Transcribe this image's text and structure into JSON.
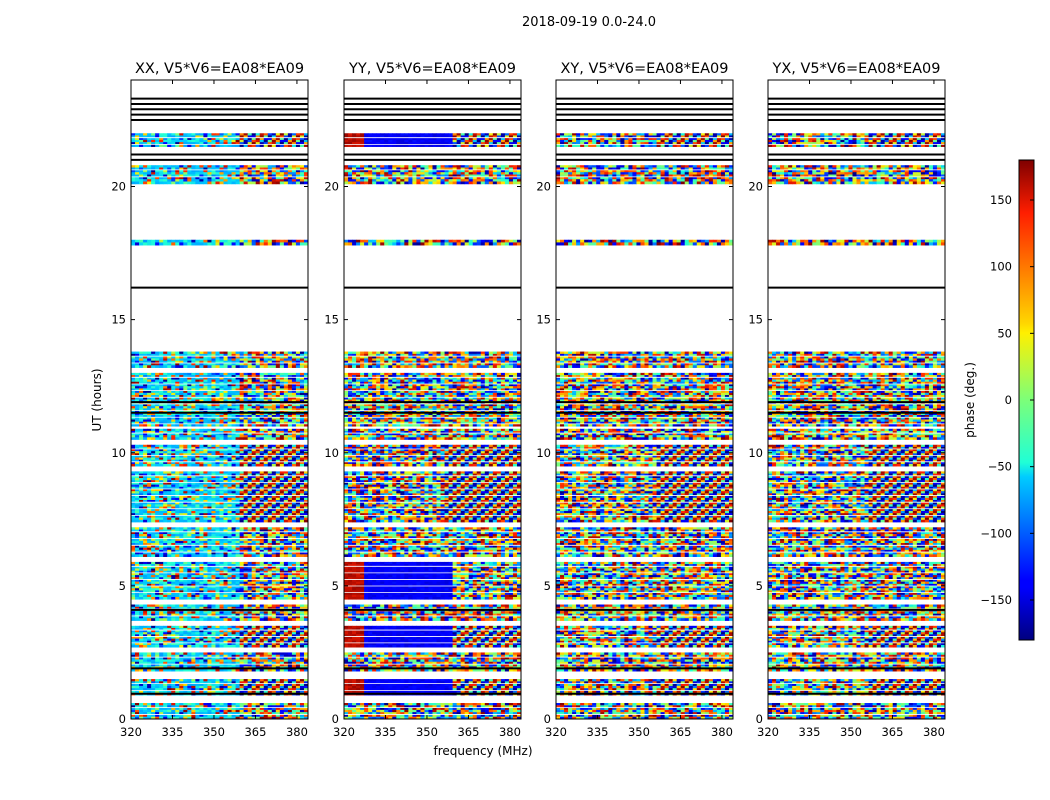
{
  "figure_title": "2018-09-19 0.0-24.0",
  "chart_data": {
    "type": "heatmap",
    "title": "2018-09-19 0.0-24.0",
    "xlabel": "frequency (MHz)",
    "ylabel": "UT (hours)",
    "xlim": [
      320,
      384
    ],
    "ylim": [
      0,
      24
    ],
    "x_ticks": [
      320,
      335,
      350,
      365,
      380
    ],
    "y_ticks": [
      0,
      5,
      10,
      15,
      20
    ],
    "panels": [
      {
        "title": "XX, V5*V6=EA08*EA09",
        "palette": "cyan"
      },
      {
        "title": "YY, V5*V6=EA08*EA09",
        "palette": "redblue"
      },
      {
        "title": "XY, V5*V6=EA08*EA09",
        "palette": "noise"
      },
      {
        "title": "YX, V5*V6=EA08*EA09",
        "palette": "noise"
      }
    ],
    "data_blocks": [
      {
        "t0": 0.0,
        "t1": 0.6,
        "kind": "noise"
      },
      {
        "t0": 0.9,
        "t1": 1.5,
        "kind": "fringe"
      },
      {
        "t0": 1.8,
        "t1": 2.5,
        "kind": "noise"
      },
      {
        "t0": 2.7,
        "t1": 3.5,
        "kind": "fringe"
      },
      {
        "t0": 3.7,
        "t1": 4.3,
        "kind": "noise"
      },
      {
        "t0": 4.5,
        "t1": 5.9,
        "kind": "noise"
      },
      {
        "t0": 6.1,
        "t1": 7.2,
        "kind": "noise"
      },
      {
        "t0": 7.4,
        "t1": 9.3,
        "kind": "fringe"
      },
      {
        "t0": 9.5,
        "t1": 10.3,
        "kind": "fringe"
      },
      {
        "t0": 10.5,
        "t1": 10.9,
        "kind": "noise"
      },
      {
        "t0": 11.0,
        "t1": 13.0,
        "kind": "noise"
      },
      {
        "t0": 13.2,
        "t1": 13.8,
        "kind": "noise"
      },
      {
        "t0": 17.8,
        "t1": 18.0,
        "kind": "noise"
      },
      {
        "t0": 20.1,
        "t1": 20.8,
        "kind": "noise"
      },
      {
        "t0": 21.5,
        "t1": 22.0,
        "kind": "fringe"
      }
    ],
    "flag_lines": [
      0.95,
      1.9,
      4.1,
      11.5,
      11.9,
      16.2,
      21.0,
      21.2,
      22.5,
      22.7,
      22.9,
      23.1,
      23.3
    ],
    "colorbar": {
      "label": "phase (deg.)",
      "range": [
        -180,
        180
      ],
      "ticks": [
        150,
        100,
        50,
        0,
        -50,
        -100,
        -150
      ],
      "tick_labels": [
        "150",
        "100",
        "50",
        "0",
        "−50",
        "−100",
        "−150"
      ],
      "colormap": "jet"
    }
  }
}
